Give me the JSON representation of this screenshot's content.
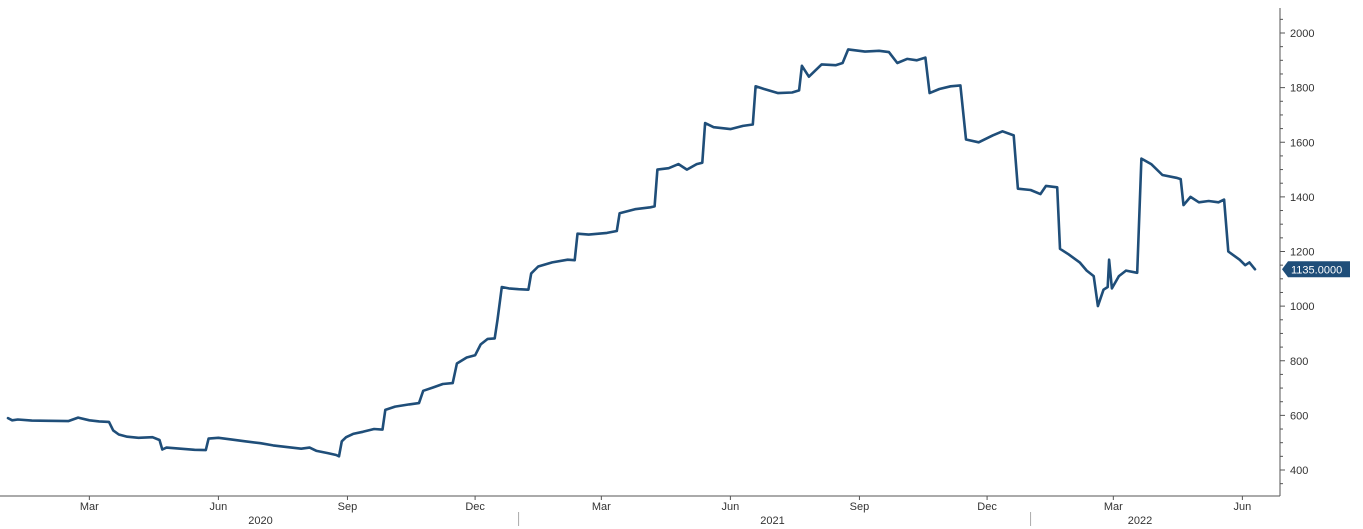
{
  "chart_data": {
    "type": "line",
    "title": "",
    "xlabel": "",
    "ylabel": "",
    "ylim": [
      330,
      2100
    ],
    "y_ticks": [
      400,
      600,
      800,
      1000,
      1200,
      1400,
      1600,
      1800,
      2000
    ],
    "y_tick_labels": [
      "400",
      "600",
      "800",
      "1000",
      "1200",
      "1400",
      "1600",
      "1800",
      "2000"
    ],
    "x_range": [
      "2020-01-03",
      "2022-06-10"
    ],
    "x_month_ticks": [
      {
        "date": "2020-03-01",
        "label": "Mar"
      },
      {
        "date": "2020-06-01",
        "label": "Jun"
      },
      {
        "date": "2020-09-01",
        "label": "Sep"
      },
      {
        "date": "2020-12-01",
        "label": "Dec"
      },
      {
        "date": "2021-03-01",
        "label": "Mar"
      },
      {
        "date": "2021-06-01",
        "label": "Jun"
      },
      {
        "date": "2021-09-01",
        "label": "Sep"
      },
      {
        "date": "2021-12-01",
        "label": "Dec"
      },
      {
        "date": "2022-03-01",
        "label": "Mar"
      },
      {
        "date": "2022-06-01",
        "label": "Jun"
      }
    ],
    "x_year_labels": [
      {
        "label": "2020",
        "center": "2020-07-01"
      },
      {
        "label": "2021",
        "center": "2021-07-01"
      },
      {
        "label": "2022",
        "center": "2022-03-20"
      }
    ],
    "year_separators": [
      "2021-01-01",
      "2022-01-01"
    ],
    "axis_side": "right",
    "grid": false,
    "legend": "none",
    "line_color": "#1f4e79",
    "badge_color": "#1f4e79",
    "last_value_label": "1135.0000",
    "series": [
      {
        "points": [
          [
            "2020-01-03",
            590
          ],
          [
            "2020-01-06",
            582
          ],
          [
            "2020-01-10",
            585
          ],
          [
            "2020-01-20",
            581
          ],
          [
            "2020-02-01",
            580
          ],
          [
            "2020-02-15",
            579
          ],
          [
            "2020-02-22",
            592
          ],
          [
            "2020-03-01",
            582
          ],
          [
            "2020-03-08",
            578
          ],
          [
            "2020-03-15",
            576
          ],
          [
            "2020-03-18",
            545
          ],
          [
            "2020-03-22",
            530
          ],
          [
            "2020-03-28",
            522
          ],
          [
            "2020-04-05",
            518
          ],
          [
            "2020-04-15",
            520
          ],
          [
            "2020-04-20",
            510
          ],
          [
            "2020-04-22",
            475
          ],
          [
            "2020-04-25",
            482
          ],
          [
            "2020-05-05",
            478
          ],
          [
            "2020-05-15",
            474
          ],
          [
            "2020-05-23",
            473
          ],
          [
            "2020-05-25",
            515
          ],
          [
            "2020-06-01",
            518
          ],
          [
            "2020-06-10",
            512
          ],
          [
            "2020-06-20",
            505
          ],
          [
            "2020-07-01",
            498
          ],
          [
            "2020-07-10",
            490
          ],
          [
            "2020-07-20",
            484
          ],
          [
            "2020-07-30",
            478
          ],
          [
            "2020-08-05",
            482
          ],
          [
            "2020-08-10",
            470
          ],
          [
            "2020-08-18",
            462
          ],
          [
            "2020-08-24",
            455
          ],
          [
            "2020-08-26",
            450
          ],
          [
            "2020-08-28",
            505
          ],
          [
            "2020-08-31",
            520
          ],
          [
            "2020-09-05",
            532
          ],
          [
            "2020-09-12",
            540
          ],
          [
            "2020-09-20",
            550
          ],
          [
            "2020-09-26",
            548
          ],
          [
            "2020-09-28",
            620
          ],
          [
            "2020-10-05",
            632
          ],
          [
            "2020-10-15",
            640
          ],
          [
            "2020-10-22",
            645
          ],
          [
            "2020-10-25",
            690
          ],
          [
            "2020-11-01",
            702
          ],
          [
            "2020-11-08",
            715
          ],
          [
            "2020-11-15",
            718
          ],
          [
            "2020-11-18",
            790
          ],
          [
            "2020-11-25",
            812
          ],
          [
            "2020-12-01",
            820
          ],
          [
            "2020-12-05",
            860
          ],
          [
            "2020-12-10",
            880
          ],
          [
            "2020-12-15",
            882
          ],
          [
            "2020-12-17",
            950
          ],
          [
            "2020-12-20",
            1070
          ],
          [
            "2020-12-25",
            1065
          ],
          [
            "2021-01-01",
            1062
          ],
          [
            "2021-01-08",
            1060
          ],
          [
            "2021-01-10",
            1120
          ],
          [
            "2021-01-15",
            1145
          ],
          [
            "2021-01-25",
            1160
          ],
          [
            "2021-02-05",
            1170
          ],
          [
            "2021-02-10",
            1168
          ],
          [
            "2021-02-12",
            1265
          ],
          [
            "2021-02-20",
            1262
          ],
          [
            "2021-03-05",
            1268
          ],
          [
            "2021-03-12",
            1275
          ],
          [
            "2021-03-14",
            1340
          ],
          [
            "2021-03-25",
            1355
          ],
          [
            "2021-04-05",
            1362
          ],
          [
            "2021-04-08",
            1365
          ],
          [
            "2021-04-10",
            1500
          ],
          [
            "2021-04-18",
            1505
          ],
          [
            "2021-04-25",
            1520
          ],
          [
            "2021-05-01",
            1500
          ],
          [
            "2021-05-08",
            1520
          ],
          [
            "2021-05-12",
            1525
          ],
          [
            "2021-05-14",
            1670
          ],
          [
            "2021-05-20",
            1655
          ],
          [
            "2021-06-01",
            1648
          ],
          [
            "2021-06-10",
            1660
          ],
          [
            "2021-06-17",
            1665
          ],
          [
            "2021-06-19",
            1805
          ],
          [
            "2021-06-25",
            1795
          ],
          [
            "2021-07-05",
            1780
          ],
          [
            "2021-07-15",
            1782
          ],
          [
            "2021-07-20",
            1790
          ],
          [
            "2021-07-22",
            1880
          ],
          [
            "2021-07-27",
            1840
          ],
          [
            "2021-08-05",
            1885
          ],
          [
            "2021-08-15",
            1882
          ],
          [
            "2021-08-20",
            1890
          ],
          [
            "2021-08-24",
            1940
          ],
          [
            "2021-09-05",
            1932
          ],
          [
            "2021-09-15",
            1935
          ],
          [
            "2021-09-22",
            1930
          ],
          [
            "2021-09-28",
            1890
          ],
          [
            "2021-10-05",
            1905
          ],
          [
            "2021-10-12",
            1900
          ],
          [
            "2021-10-18",
            1910
          ],
          [
            "2021-10-21",
            1780
          ],
          [
            "2021-10-28",
            1795
          ],
          [
            "2021-11-05",
            1805
          ],
          [
            "2021-11-12",
            1808
          ],
          [
            "2021-11-16",
            1610
          ],
          [
            "2021-11-25",
            1600
          ],
          [
            "2021-12-05",
            1625
          ],
          [
            "2021-12-12",
            1640
          ],
          [
            "2021-12-20",
            1625
          ],
          [
            "2021-12-23",
            1430
          ],
          [
            "2022-01-01",
            1425
          ],
          [
            "2022-01-08",
            1410
          ],
          [
            "2022-01-12",
            1440
          ],
          [
            "2022-01-20",
            1435
          ],
          [
            "2022-01-22",
            1210
          ],
          [
            "2022-01-28",
            1190
          ],
          [
            "2022-02-05",
            1160
          ],
          [
            "2022-02-10",
            1130
          ],
          [
            "2022-02-15",
            1110
          ],
          [
            "2022-02-18",
            1000
          ],
          [
            "2022-02-22",
            1060
          ],
          [
            "2022-02-25",
            1070
          ],
          [
            "2022-02-26",
            1170
          ],
          [
            "2022-02-28",
            1065
          ],
          [
            "2022-03-05",
            1110
          ],
          [
            "2022-03-10",
            1130
          ],
          [
            "2022-03-18",
            1122
          ],
          [
            "2022-03-21",
            1540
          ],
          [
            "2022-03-28",
            1520
          ],
          [
            "2022-04-05",
            1480
          ],
          [
            "2022-04-15",
            1470
          ],
          [
            "2022-04-18",
            1465
          ],
          [
            "2022-04-20",
            1370
          ],
          [
            "2022-04-25",
            1400
          ],
          [
            "2022-05-01",
            1380
          ],
          [
            "2022-05-08",
            1385
          ],
          [
            "2022-05-15",
            1380
          ],
          [
            "2022-05-19",
            1390
          ],
          [
            "2022-05-22",
            1200
          ],
          [
            "2022-05-30",
            1170
          ],
          [
            "2022-06-03",
            1150
          ],
          [
            "2022-06-06",
            1160
          ],
          [
            "2022-06-10",
            1135
          ]
        ]
      }
    ]
  }
}
